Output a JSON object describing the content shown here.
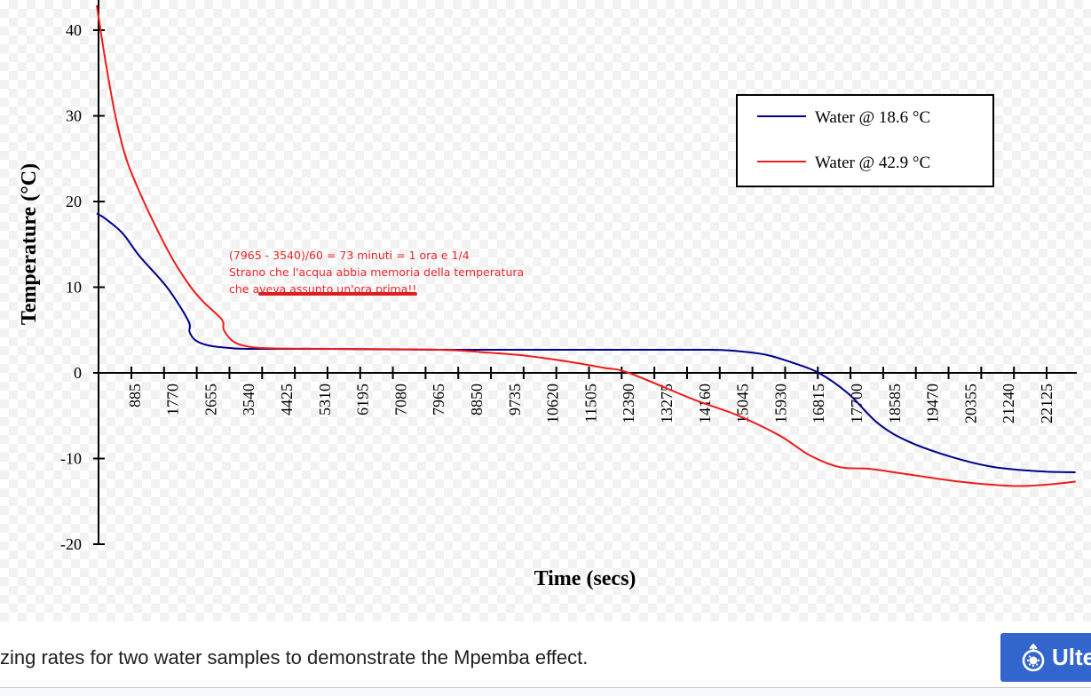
{
  "chart_data": {
    "type": "line",
    "title": "",
    "xlabel": "Time (secs)",
    "ylabel": "Temperature (°C)",
    "xlim": [
      0,
      23200
    ],
    "ylim": [
      -20,
      43
    ],
    "x_tick_labels": [
      "885",
      "1770",
      "2655",
      "3540",
      "4425",
      "5310",
      "6195",
      "7080",
      "7965",
      "8850",
      "9735",
      "10620",
      "11505",
      "12390",
      "13275",
      "14160",
      "15045",
      "15930",
      "16815",
      "17700",
      "18585",
      "19470",
      "20355",
      "21240",
      "22125"
    ],
    "y_tick_labels": [
      "-20",
      "-10",
      "0",
      "10",
      "20",
      "30",
      "40"
    ],
    "y_ticks": [
      -20,
      -10,
      0,
      10,
      20,
      30,
      40
    ],
    "grid": false,
    "legend_position": "top-right",
    "series": [
      {
        "name": "Water @ 18.6 °C",
        "color": "#00008b",
        "points": [
          [
            0,
            18.6
          ],
          [
            200,
            18.0
          ],
          [
            600,
            16.3
          ],
          [
            1000,
            13.6
          ],
          [
            1634,
            10.0
          ],
          [
            2130,
            6.1
          ],
          [
            2160,
            4.8
          ],
          [
            2300,
            3.8
          ],
          [
            2600,
            3.2
          ],
          [
            3100,
            2.9
          ],
          [
            3540,
            2.8
          ],
          [
            5000,
            2.8
          ],
          [
            8000,
            2.7
          ],
          [
            12000,
            2.7
          ],
          [
            14300,
            2.7
          ],
          [
            15000,
            2.5
          ],
          [
            15600,
            2.1
          ],
          [
            16200,
            1.2
          ],
          [
            16815,
            0.0
          ],
          [
            17500,
            -2.4
          ],
          [
            18200,
            -5.9
          ],
          [
            18900,
            -8.0
          ],
          [
            19900,
            -9.8
          ],
          [
            20900,
            -11.0
          ],
          [
            22000,
            -11.5
          ],
          [
            22800,
            -11.6
          ]
        ]
      },
      {
        "name": "Water @ 42.9 °C",
        "color": "#ee1c1c",
        "points": [
          [
            0,
            42.9
          ],
          [
            200,
            36.5
          ],
          [
            434,
            30.0
          ],
          [
            700,
            24.8
          ],
          [
            1096,
            20.0
          ],
          [
            1500,
            15.8
          ],
          [
            1800,
            13.0
          ],
          [
            2192,
            10.0
          ],
          [
            2500,
            8.2
          ],
          [
            2916,
            6.2
          ],
          [
            2960,
            5.0
          ],
          [
            3200,
            3.6
          ],
          [
            3600,
            3.0
          ],
          [
            4200,
            2.85
          ],
          [
            5500,
            2.8
          ],
          [
            7965,
            2.7
          ],
          [
            9000,
            2.4
          ],
          [
            10000,
            2.0
          ],
          [
            11000,
            1.3
          ],
          [
            11800,
            0.6
          ],
          [
            12390,
            0.0
          ],
          [
            13900,
            -3.1
          ],
          [
            14900,
            -4.9
          ],
          [
            15900,
            -7.3
          ],
          [
            16600,
            -9.6
          ],
          [
            17300,
            -11.0
          ],
          [
            18000,
            -11.2
          ],
          [
            18700,
            -11.7
          ],
          [
            20100,
            -12.7
          ],
          [
            21300,
            -13.2
          ],
          [
            22000,
            -13.1
          ],
          [
            22800,
            -12.7
          ]
        ]
      }
    ]
  },
  "annotation": {
    "lines": [
      "(7965 - 3540)/60 = 73 minuti = 1 ora e 1/4",
      "Strano che l'acqua abbia memoria della temperatura",
      "che aveva assunto un'ora prima!!"
    ],
    "color": "#e8262b"
  },
  "caption": "zing rates for two water samples to demonstrate the Mpemba effect.",
  "button": {
    "label": "Ulte",
    "icon": "wikimedia-commons-icon",
    "color": "#3366cc"
  }
}
